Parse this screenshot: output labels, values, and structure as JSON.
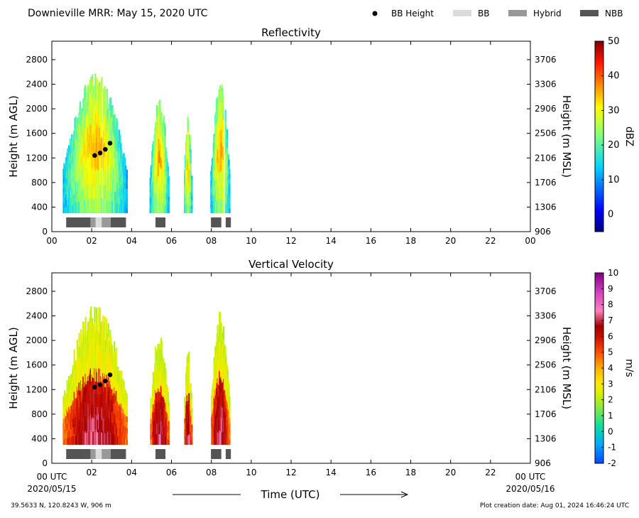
{
  "header": {
    "title": "Downieville MRR:  May 15, 2020 UTC",
    "legend": [
      {
        "label": "BB Height",
        "kind": "dot",
        "color": "#000000"
      },
      {
        "label": "BB",
        "kind": "swatch",
        "color": "#dcdcdc"
      },
      {
        "label": "Hybrid",
        "kind": "swatch",
        "color": "#999999"
      },
      {
        "label": "NBB",
        "kind": "swatch",
        "color": "#555555"
      }
    ]
  },
  "footer": {
    "location": "39.5633 N, 120.8243 W, 906 m",
    "created": "Plot creation date: Aug 01, 2024 16:46:24 UTC",
    "xlabel": "Time (UTC)",
    "start_tick": "00 UTC",
    "end_tick": "00 UTC",
    "start_date": "2020/05/15",
    "end_date": "2020/05/16"
  },
  "chart_data": [
    {
      "type": "heatmap",
      "title": "Reflectivity",
      "ylabel": "Height (m AGL)",
      "ylabel_right": "Height (m MSL)",
      "colorbar_label": "dBZ",
      "xlim": [
        0,
        24
      ],
      "ylim": [
        0,
        3100
      ],
      "x_ticks": [
        "00",
        "02",
        "04",
        "06",
        "08",
        "10",
        "12",
        "14",
        "16",
        "18",
        "20",
        "22",
        "00"
      ],
      "y_ticks": [
        0,
        400,
        800,
        1200,
        1600,
        2000,
        2400,
        2800
      ],
      "y_ticks_right": [
        906,
        1306,
        1706,
        2106,
        2506,
        2906,
        3306,
        3706
      ],
      "colorbar_range": [
        -5,
        50
      ],
      "colorbar_ticks": [
        0,
        10,
        20,
        30,
        40,
        50
      ],
      "echo_periods": [
        {
          "start": 0.55,
          "end": 3.75,
          "top": 2600
        },
        {
          "start": 4.9,
          "end": 5.85,
          "top": 2200
        },
        {
          "start": 6.6,
          "end": 7.0,
          "top": 1900
        },
        {
          "start": 7.95,
          "end": 8.9,
          "top": 2500
        }
      ],
      "bright_band_heights": [
        {
          "time": 2.15,
          "height": 1240
        },
        {
          "time": 2.42,
          "height": 1280
        },
        {
          "time": 2.68,
          "height": 1340
        },
        {
          "time": 2.92,
          "height": 1440
        }
      ],
      "band_classification": [
        {
          "start": 0.72,
          "end": 1.95,
          "class": "NBB"
        },
        {
          "start": 1.95,
          "end": 2.2,
          "class": "Hybrid"
        },
        {
          "start": 2.2,
          "end": 2.5,
          "class": "BB"
        },
        {
          "start": 2.5,
          "end": 2.95,
          "class": "Hybrid"
        },
        {
          "start": 2.95,
          "end": 3.72,
          "class": "NBB"
        },
        {
          "start": 5.2,
          "end": 5.7,
          "class": "NBB"
        },
        {
          "start": 7.98,
          "end": 8.5,
          "class": "NBB"
        },
        {
          "start": 8.72,
          "end": 8.98,
          "class": "NBB"
        }
      ]
    },
    {
      "type": "heatmap",
      "title": "Vertical Velocity",
      "ylabel": "Height (m AGL)",
      "ylabel_right": "Height (m MSL)",
      "colorbar_label": "m/s",
      "xlim": [
        0,
        24
      ],
      "ylim": [
        0,
        3100
      ],
      "x_ticks": [
        "",
        "02",
        "04",
        "06",
        "08",
        "10",
        "12",
        "14",
        "16",
        "18",
        "20",
        "22",
        ""
      ],
      "y_ticks": [
        0,
        400,
        800,
        1200,
        1600,
        2000,
        2400,
        2800
      ],
      "y_ticks_right": [
        906,
        1306,
        1706,
        2106,
        2506,
        2906,
        3306,
        3706
      ],
      "colorbar_range": [
        -2,
        10
      ],
      "colorbar_ticks": [
        -2,
        -1,
        0,
        1,
        2,
        3,
        4,
        5,
        6,
        7,
        8,
        9,
        10
      ],
      "echo_periods": [
        {
          "start": 0.55,
          "end": 3.75,
          "top": 2600
        },
        {
          "start": 4.9,
          "end": 5.85,
          "top": 2200
        },
        {
          "start": 6.6,
          "end": 7.0,
          "top": 1900
        },
        {
          "start": 7.95,
          "end": 8.9,
          "top": 2500
        }
      ],
      "bright_band_heights": [
        {
          "time": 2.15,
          "height": 1240
        },
        {
          "time": 2.42,
          "height": 1280
        },
        {
          "time": 2.68,
          "height": 1340
        },
        {
          "time": 2.92,
          "height": 1440
        }
      ],
      "band_classification": [
        {
          "start": 0.72,
          "end": 1.95,
          "class": "NBB"
        },
        {
          "start": 1.95,
          "end": 2.2,
          "class": "Hybrid"
        },
        {
          "start": 2.2,
          "end": 2.5,
          "class": "BB"
        },
        {
          "start": 2.5,
          "end": 2.95,
          "class": "Hybrid"
        },
        {
          "start": 2.95,
          "end": 3.72,
          "class": "NBB"
        },
        {
          "start": 5.2,
          "end": 5.7,
          "class": "NBB"
        },
        {
          "start": 7.98,
          "end": 8.5,
          "class": "NBB"
        },
        {
          "start": 8.72,
          "end": 8.98,
          "class": "NBB"
        }
      ]
    }
  ]
}
